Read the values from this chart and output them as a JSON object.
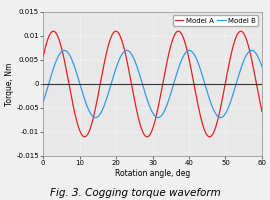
{
  "title": "Fig. 3. Cogging torque waveform",
  "xlabel": "Rotation angle, deg",
  "ylabel": "Torque, Nm",
  "xlim": [
    0,
    60
  ],
  "ylim": [
    -0.015,
    0.015
  ],
  "xticks": [
    0,
    10,
    20,
    30,
    40,
    50,
    60
  ],
  "yticks": [
    -0.015,
    -0.01,
    -0.005,
    0,
    0.005,
    0.01,
    0.015
  ],
  "ytick_labels": [
    "-0.015",
    "-0.01",
    "-0.005",
    "0",
    "0.005",
    "0.01",
    "0.015"
  ],
  "legend": [
    "Model A",
    "Model B"
  ],
  "model_A_color": "#e82020",
  "model_B_color": "#3399ee",
  "figure_bg_color": "#f0f0f0",
  "plot_bg_color": "#e8e8e8",
  "grid_color": "#ffffff",
  "zero_line_color": "#333333",
  "model_A_amplitude": 0.011,
  "model_A_freq_cycles": 3.5,
  "model_A_phase": 0.55,
  "model_B_amplitude": 0.007,
  "model_B_freq_cycles": 3.5,
  "model_B_phase": -0.55,
  "title_fontsize": 7.5,
  "axis_label_fontsize": 5.5,
  "tick_fontsize": 5.0,
  "legend_fontsize": 5.0,
  "line_width": 0.9
}
